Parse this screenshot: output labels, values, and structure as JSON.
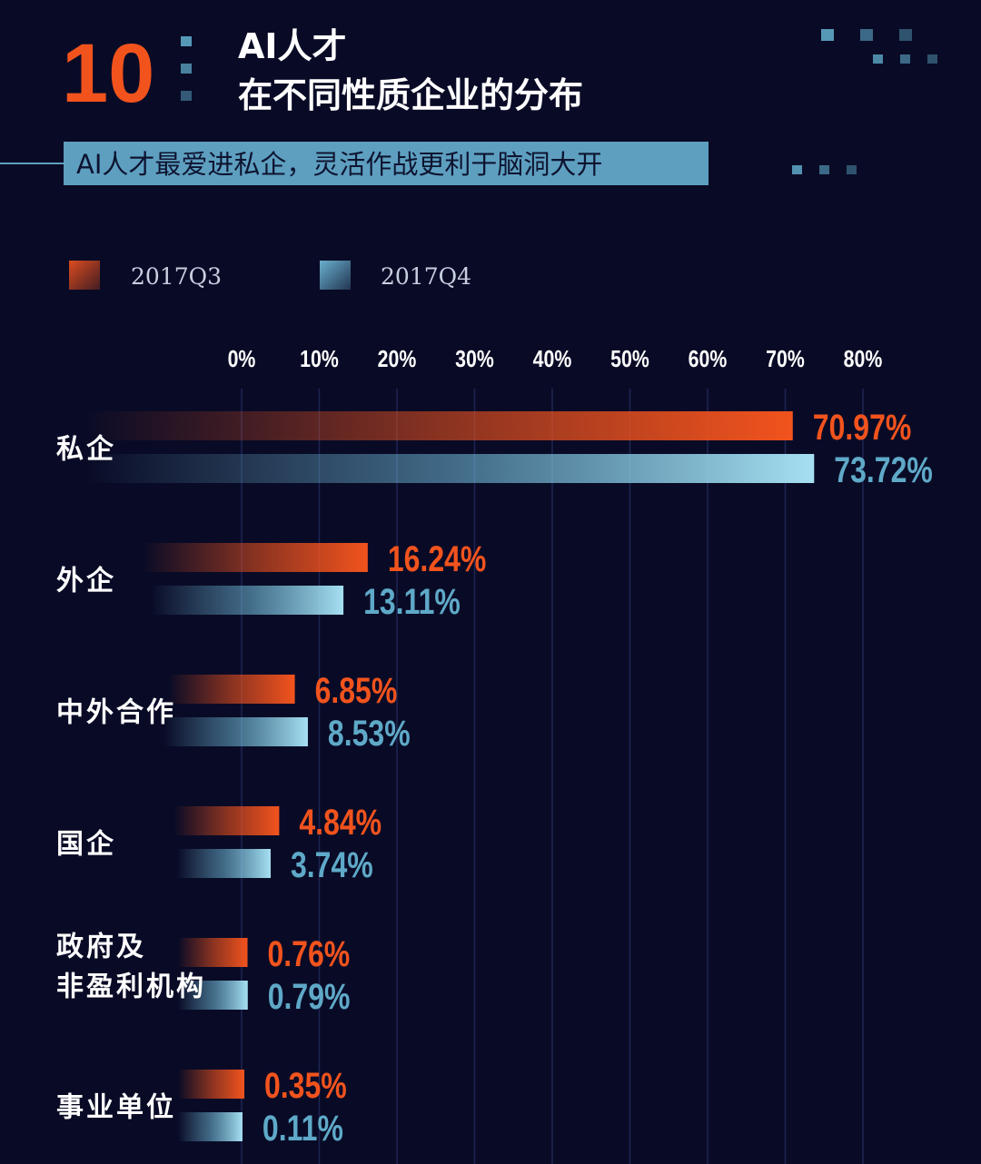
{
  "header": {
    "number": "10",
    "title_line1": "AI人才",
    "title_line2": "在不同性质企业的分布",
    "subtitle": "AI人才最爱进私企，灵活作战更利于脑洞大开"
  },
  "colors": {
    "background": "#090b26",
    "accent_orange": "#f2531d",
    "accent_blue": "#5fa9c8",
    "subtitle_bg": "#5e9fc0"
  },
  "chart_data": {
    "type": "bar",
    "orientation": "horizontal",
    "categories": [
      [
        "私企"
      ],
      [
        "外企"
      ],
      [
        "中外合作"
      ],
      [
        "国企"
      ],
      [
        "政府及",
        "非盈利机构"
      ],
      [
        "事业单位"
      ]
    ],
    "series": [
      {
        "name": "2017Q3",
        "values": [
          70.97,
          16.24,
          6.85,
          4.84,
          0.76,
          0.35
        ]
      },
      {
        "name": "2017Q4",
        "values": [
          73.72,
          13.11,
          8.53,
          3.74,
          0.79,
          0.11
        ]
      }
    ],
    "value_labels": [
      [
        "70.97%",
        "16.24%",
        "6.85%",
        "4.84%",
        "0.76%",
        "0.35%"
      ],
      [
        "73.72%",
        "13.11%",
        "8.53%",
        "3.74%",
        "0.79%",
        "0.11%"
      ]
    ],
    "xticks": [
      "0%",
      "10%",
      "20%",
      "30%",
      "40%",
      "50%",
      "60%",
      "70%",
      "80%"
    ],
    "xtick_values": [
      0,
      10,
      20,
      30,
      40,
      50,
      60,
      70,
      80
    ],
    "xlim": [
      0,
      80
    ],
    "grid": true,
    "legend_position": "top-left"
  }
}
